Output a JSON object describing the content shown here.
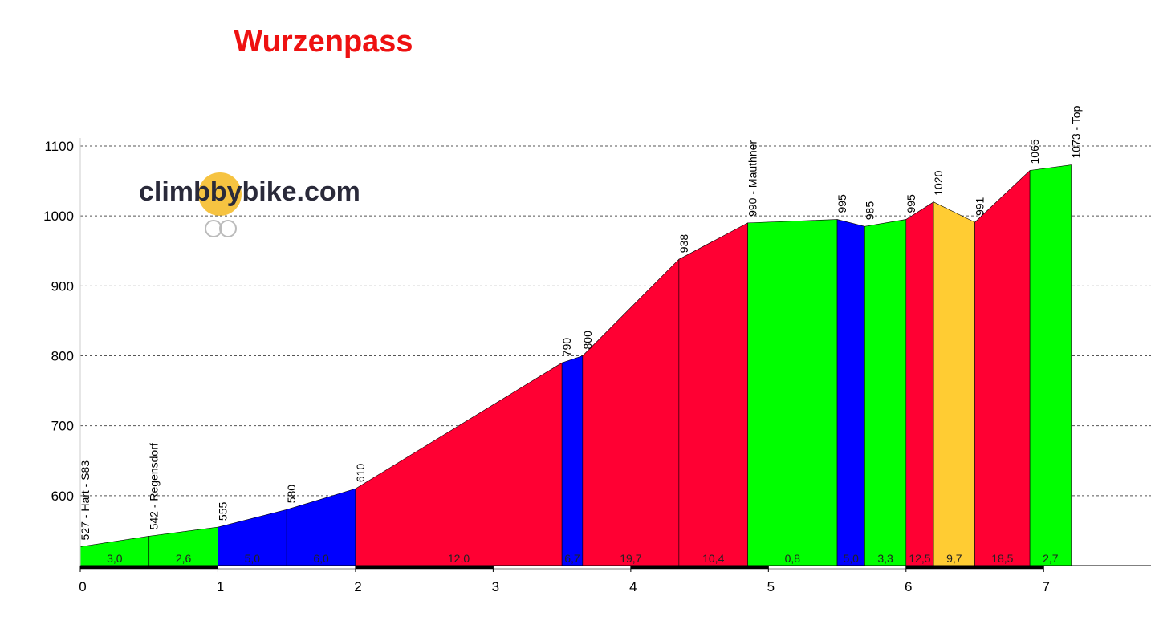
{
  "chart_data": {
    "type": "profile",
    "title": "Wurzenpass",
    "watermark": "climbbybike.com",
    "x": [
      0,
      0.5,
      1,
      1.5,
      2,
      3.5,
      3.65,
      4.35,
      4.85,
      5.5,
      5.7,
      6,
      6.2,
      6.5,
      6.9,
      7.2
    ],
    "series": [
      {
        "values": [
          527,
          542,
          555,
          580,
          610,
          790,
          800,
          938,
          990,
          995,
          985,
          995,
          1020,
          991,
          1065,
          1073
        ],
        "point_labels": [
          "527 - Hart - S83",
          "542 - Regensdorf",
          "555",
          "580",
          "610",
          "790",
          "800",
          "938",
          "990 - Mauthner",
          "995",
          "985",
          "995",
          "1020",
          "991",
          "1065",
          "1073 - Top"
        ]
      }
    ],
    "segments": [
      {
        "label": "3,0",
        "color": "#00ff00"
      },
      {
        "label": "2,6",
        "color": "#00ff00"
      },
      {
        "label": "5,0",
        "color": "#0000ff"
      },
      {
        "label": "6,0",
        "color": "#0000ff"
      },
      {
        "label": "12,0",
        "color": "#ff0033"
      },
      {
        "label": "6,7",
        "color": "#0000ff"
      },
      {
        "label": "19,7",
        "color": "#ff0033"
      },
      {
        "label": "10,4",
        "color": "#ff0033"
      },
      {
        "label": "0,8",
        "color": "#00ff00"
      },
      {
        "label": "5,0",
        "color": "#0000ff"
      },
      {
        "label": "3,3",
        "color": "#00ff00"
      },
      {
        "label": "12,5",
        "color": "#ff0033"
      },
      {
        "label": "9,7",
        "color": "#ffcc33"
      },
      {
        "label": "18,5",
        "color": "#ff0033"
      },
      {
        "label": "2,7",
        "color": "#00ff00"
      }
    ],
    "xlim": [
      0,
      7.78
    ],
    "xticks": [
      0,
      1,
      2,
      3,
      4,
      5,
      6,
      7
    ],
    "ylim": [
      500,
      1100
    ],
    "yticks": [
      600,
      700,
      800,
      900,
      1000,
      1100
    ],
    "grid": true
  }
}
